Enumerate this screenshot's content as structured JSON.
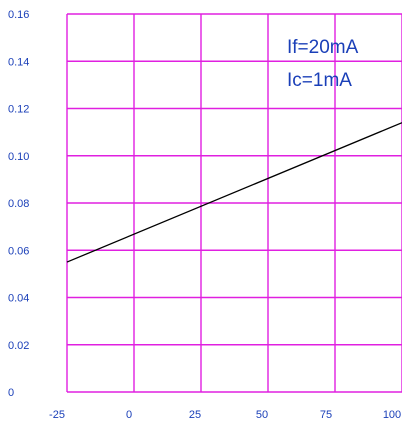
{
  "chart_data": {
    "type": "line",
    "title": "",
    "xlabel": "",
    "ylabel": "",
    "x_ticks": [
      "-25",
      "0",
      "25",
      "50",
      "75",
      "100"
    ],
    "y_ticks": [
      "0",
      "0.02",
      "0.04",
      "0.06",
      "0.08",
      "0.10",
      "0.12",
      "0.14",
      "0.16"
    ],
    "xlim": [
      -25,
      100
    ],
    "ylim": [
      0,
      0.16
    ],
    "grid": true,
    "colors": {
      "grid": "#e020e0",
      "tick_text": "#1a3fb8",
      "line": "#000000"
    },
    "annotations": [
      "If=20mA",
      "Ic=1mA"
    ],
    "series": [
      {
        "x": [
          -25,
          100
        ],
        "y": [
          0.055,
          0.114
        ]
      }
    ]
  }
}
